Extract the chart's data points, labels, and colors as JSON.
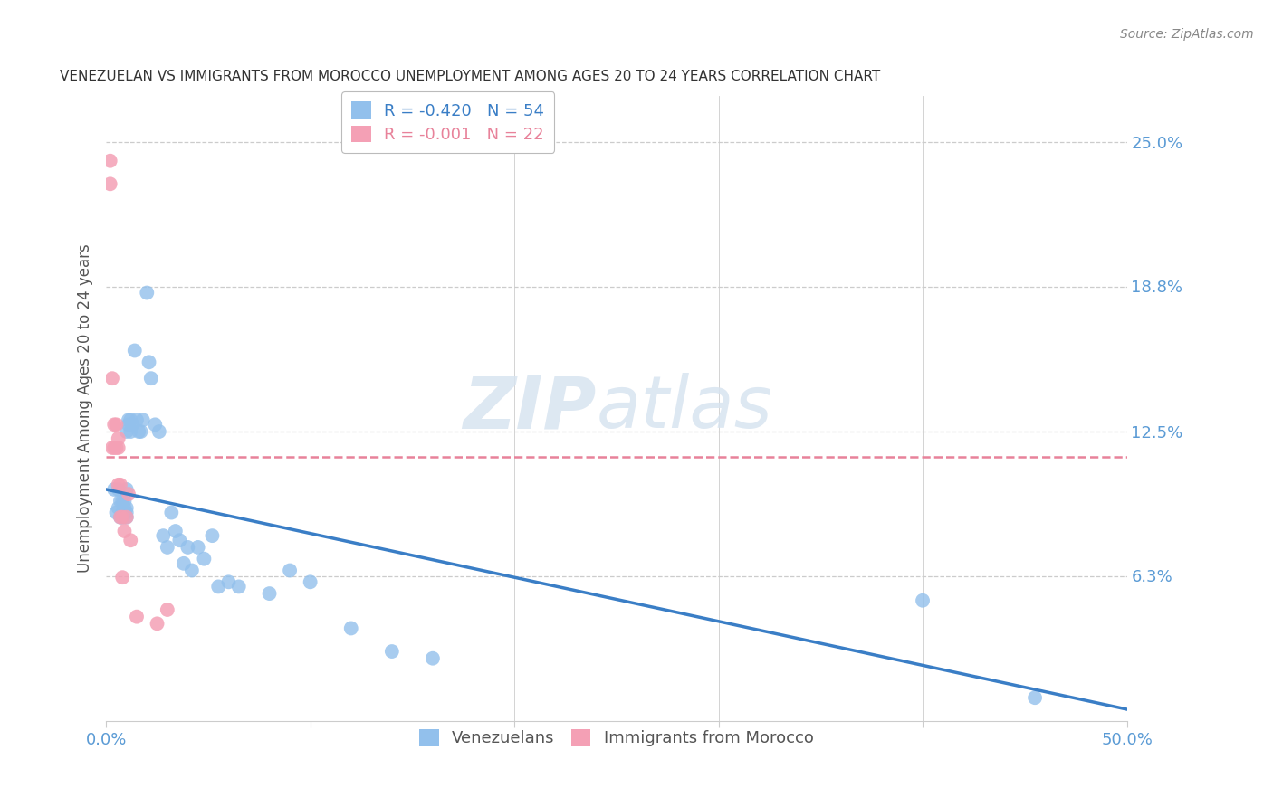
{
  "title": "VENEZUELAN VS IMMIGRANTS FROM MOROCCO UNEMPLOYMENT AMONG AGES 20 TO 24 YEARS CORRELATION CHART",
  "source": "Source: ZipAtlas.com",
  "ylabel": "Unemployment Among Ages 20 to 24 years",
  "xlim": [
    0.0,
    0.5
  ],
  "ylim": [
    0.0,
    0.27
  ],
  "ytick_labels_right": [
    "25.0%",
    "18.8%",
    "12.5%",
    "6.3%"
  ],
  "ytick_vals_right": [
    0.25,
    0.188,
    0.125,
    0.063
  ],
  "grid_color": "#cccccc",
  "background_color": "#ffffff",
  "watermark_zip": "ZIP",
  "watermark_atlas": "atlas",
  "blue_color": "#92C0EC",
  "pink_color": "#F4A0B5",
  "blue_line_color": "#3a7ec6",
  "pink_line_color": "#E8829A",
  "title_color": "#333333",
  "axis_label_color": "#555555",
  "right_tick_color": "#5b9bd5",
  "bottom_tick_color": "#5b9bd5",
  "venezuelan_x": [
    0.004,
    0.005,
    0.006,
    0.006,
    0.007,
    0.007,
    0.008,
    0.008,
    0.008,
    0.009,
    0.009,
    0.009,
    0.01,
    0.01,
    0.01,
    0.01,
    0.01,
    0.011,
    0.011,
    0.012,
    0.012,
    0.013,
    0.014,
    0.015,
    0.016,
    0.017,
    0.018,
    0.02,
    0.021,
    0.022,
    0.024,
    0.026,
    0.028,
    0.03,
    0.032,
    0.034,
    0.036,
    0.038,
    0.04,
    0.042,
    0.045,
    0.048,
    0.052,
    0.055,
    0.06,
    0.065,
    0.08,
    0.09,
    0.1,
    0.12,
    0.14,
    0.16,
    0.4,
    0.455
  ],
  "venezuelan_y": [
    0.1,
    0.09,
    0.092,
    0.1,
    0.095,
    0.088,
    0.09,
    0.095,
    0.088,
    0.09,
    0.092,
    0.095,
    0.088,
    0.09,
    0.092,
    0.1,
    0.125,
    0.13,
    0.128,
    0.13,
    0.125,
    0.128,
    0.16,
    0.13,
    0.125,
    0.125,
    0.13,
    0.185,
    0.155,
    0.148,
    0.128,
    0.125,
    0.08,
    0.075,
    0.09,
    0.082,
    0.078,
    0.068,
    0.075,
    0.065,
    0.075,
    0.07,
    0.08,
    0.058,
    0.06,
    0.058,
    0.055,
    0.065,
    0.06,
    0.04,
    0.03,
    0.027,
    0.052,
    0.01
  ],
  "morocco_x": [
    0.002,
    0.002,
    0.003,
    0.003,
    0.004,
    0.004,
    0.005,
    0.005,
    0.006,
    0.006,
    0.006,
    0.007,
    0.007,
    0.008,
    0.008,
    0.009,
    0.01,
    0.011,
    0.012,
    0.015,
    0.025,
    0.03
  ],
  "morocco_y": [
    0.242,
    0.232,
    0.148,
    0.118,
    0.118,
    0.128,
    0.128,
    0.118,
    0.122,
    0.102,
    0.118,
    0.088,
    0.102,
    0.088,
    0.062,
    0.082,
    0.088,
    0.098,
    0.078,
    0.045,
    0.042,
    0.048
  ],
  "blue_trendline_x": [
    0.0,
    0.5
  ],
  "blue_trendline_y": [
    0.1,
    0.005
  ],
  "pink_trendline_x": [
    0.0,
    0.5
  ],
  "pink_trendline_y": [
    0.114,
    0.114
  ]
}
